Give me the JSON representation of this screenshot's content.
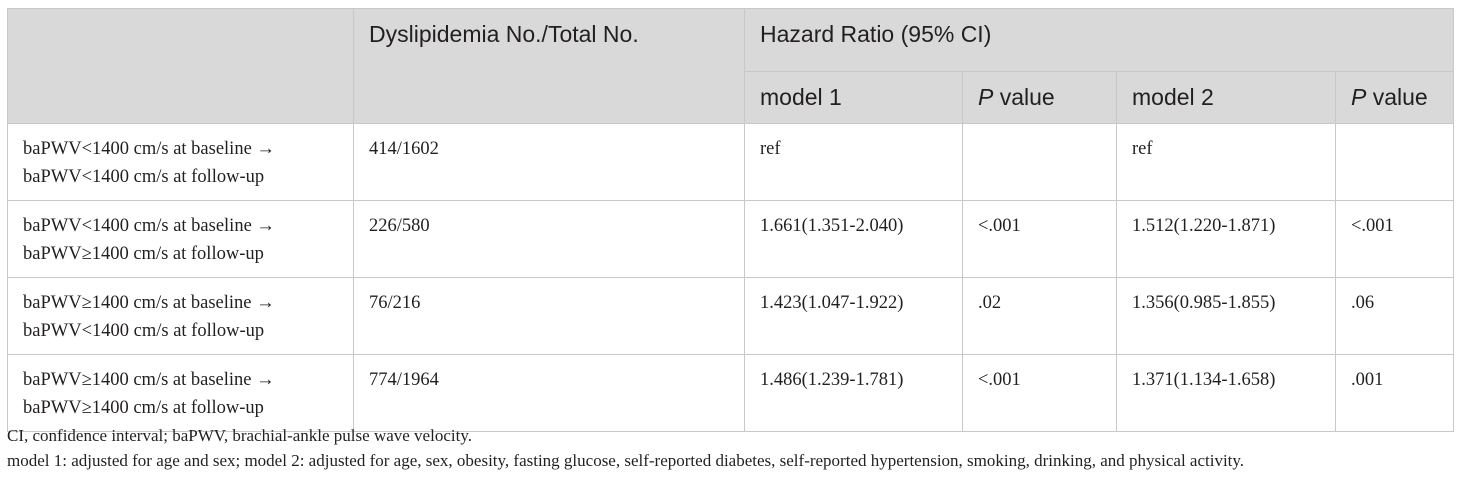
{
  "header": {
    "col1": "",
    "col2": "Dyslipidemia No./Total No.",
    "group": "Hazard Ratio (95% CI)",
    "model1": "model 1",
    "p_italic": "P",
    "p_rest": " value",
    "model2": "model 2"
  },
  "rows": [
    {
      "line1": "baPWV<1400 cm/s at baseline →",
      "line2": "baPWV<1400 cm/s at follow-up",
      "count": "414/1602",
      "hr1": "ref",
      "p1": "",
      "hr2": "ref",
      "p2": ""
    },
    {
      "line1": "baPWV<1400 cm/s at baseline →",
      "line2": "baPWV≥1400 cm/s at follow-up",
      "count": "226/580",
      "hr1": "1.661(1.351-2.040)",
      "p1": "<.001",
      "hr2": "1.512(1.220-1.871)",
      "p2": "<.001"
    },
    {
      "line1": "baPWV≥1400 cm/s at baseline →",
      "line2": "baPWV<1400 cm/s at follow-up",
      "count": "76/216",
      "hr1": "1.423(1.047-1.922)",
      "p1": ".02",
      "hr2": "1.356(0.985-1.855)",
      "p2": ".06"
    },
    {
      "line1": "baPWV≥1400 cm/s at baseline →",
      "line2": "baPWV≥1400 cm/s at follow-up",
      "count": "774/1964",
      "hr1": "1.486(1.239-1.781)",
      "p1": "<.001",
      "hr2": "1.371(1.134-1.658)",
      "p2": ".001"
    }
  ],
  "footnotes": {
    "line1": "CI, confidence interval; baPWV, brachial-ankle pulse wave velocity.",
    "line2": "model 1: adjusted for age and sex; model 2: adjusted for age, sex, obesity, fasting glucose, self-reported diabetes, self-reported hypertension, smoking, drinking, and physical activity."
  }
}
